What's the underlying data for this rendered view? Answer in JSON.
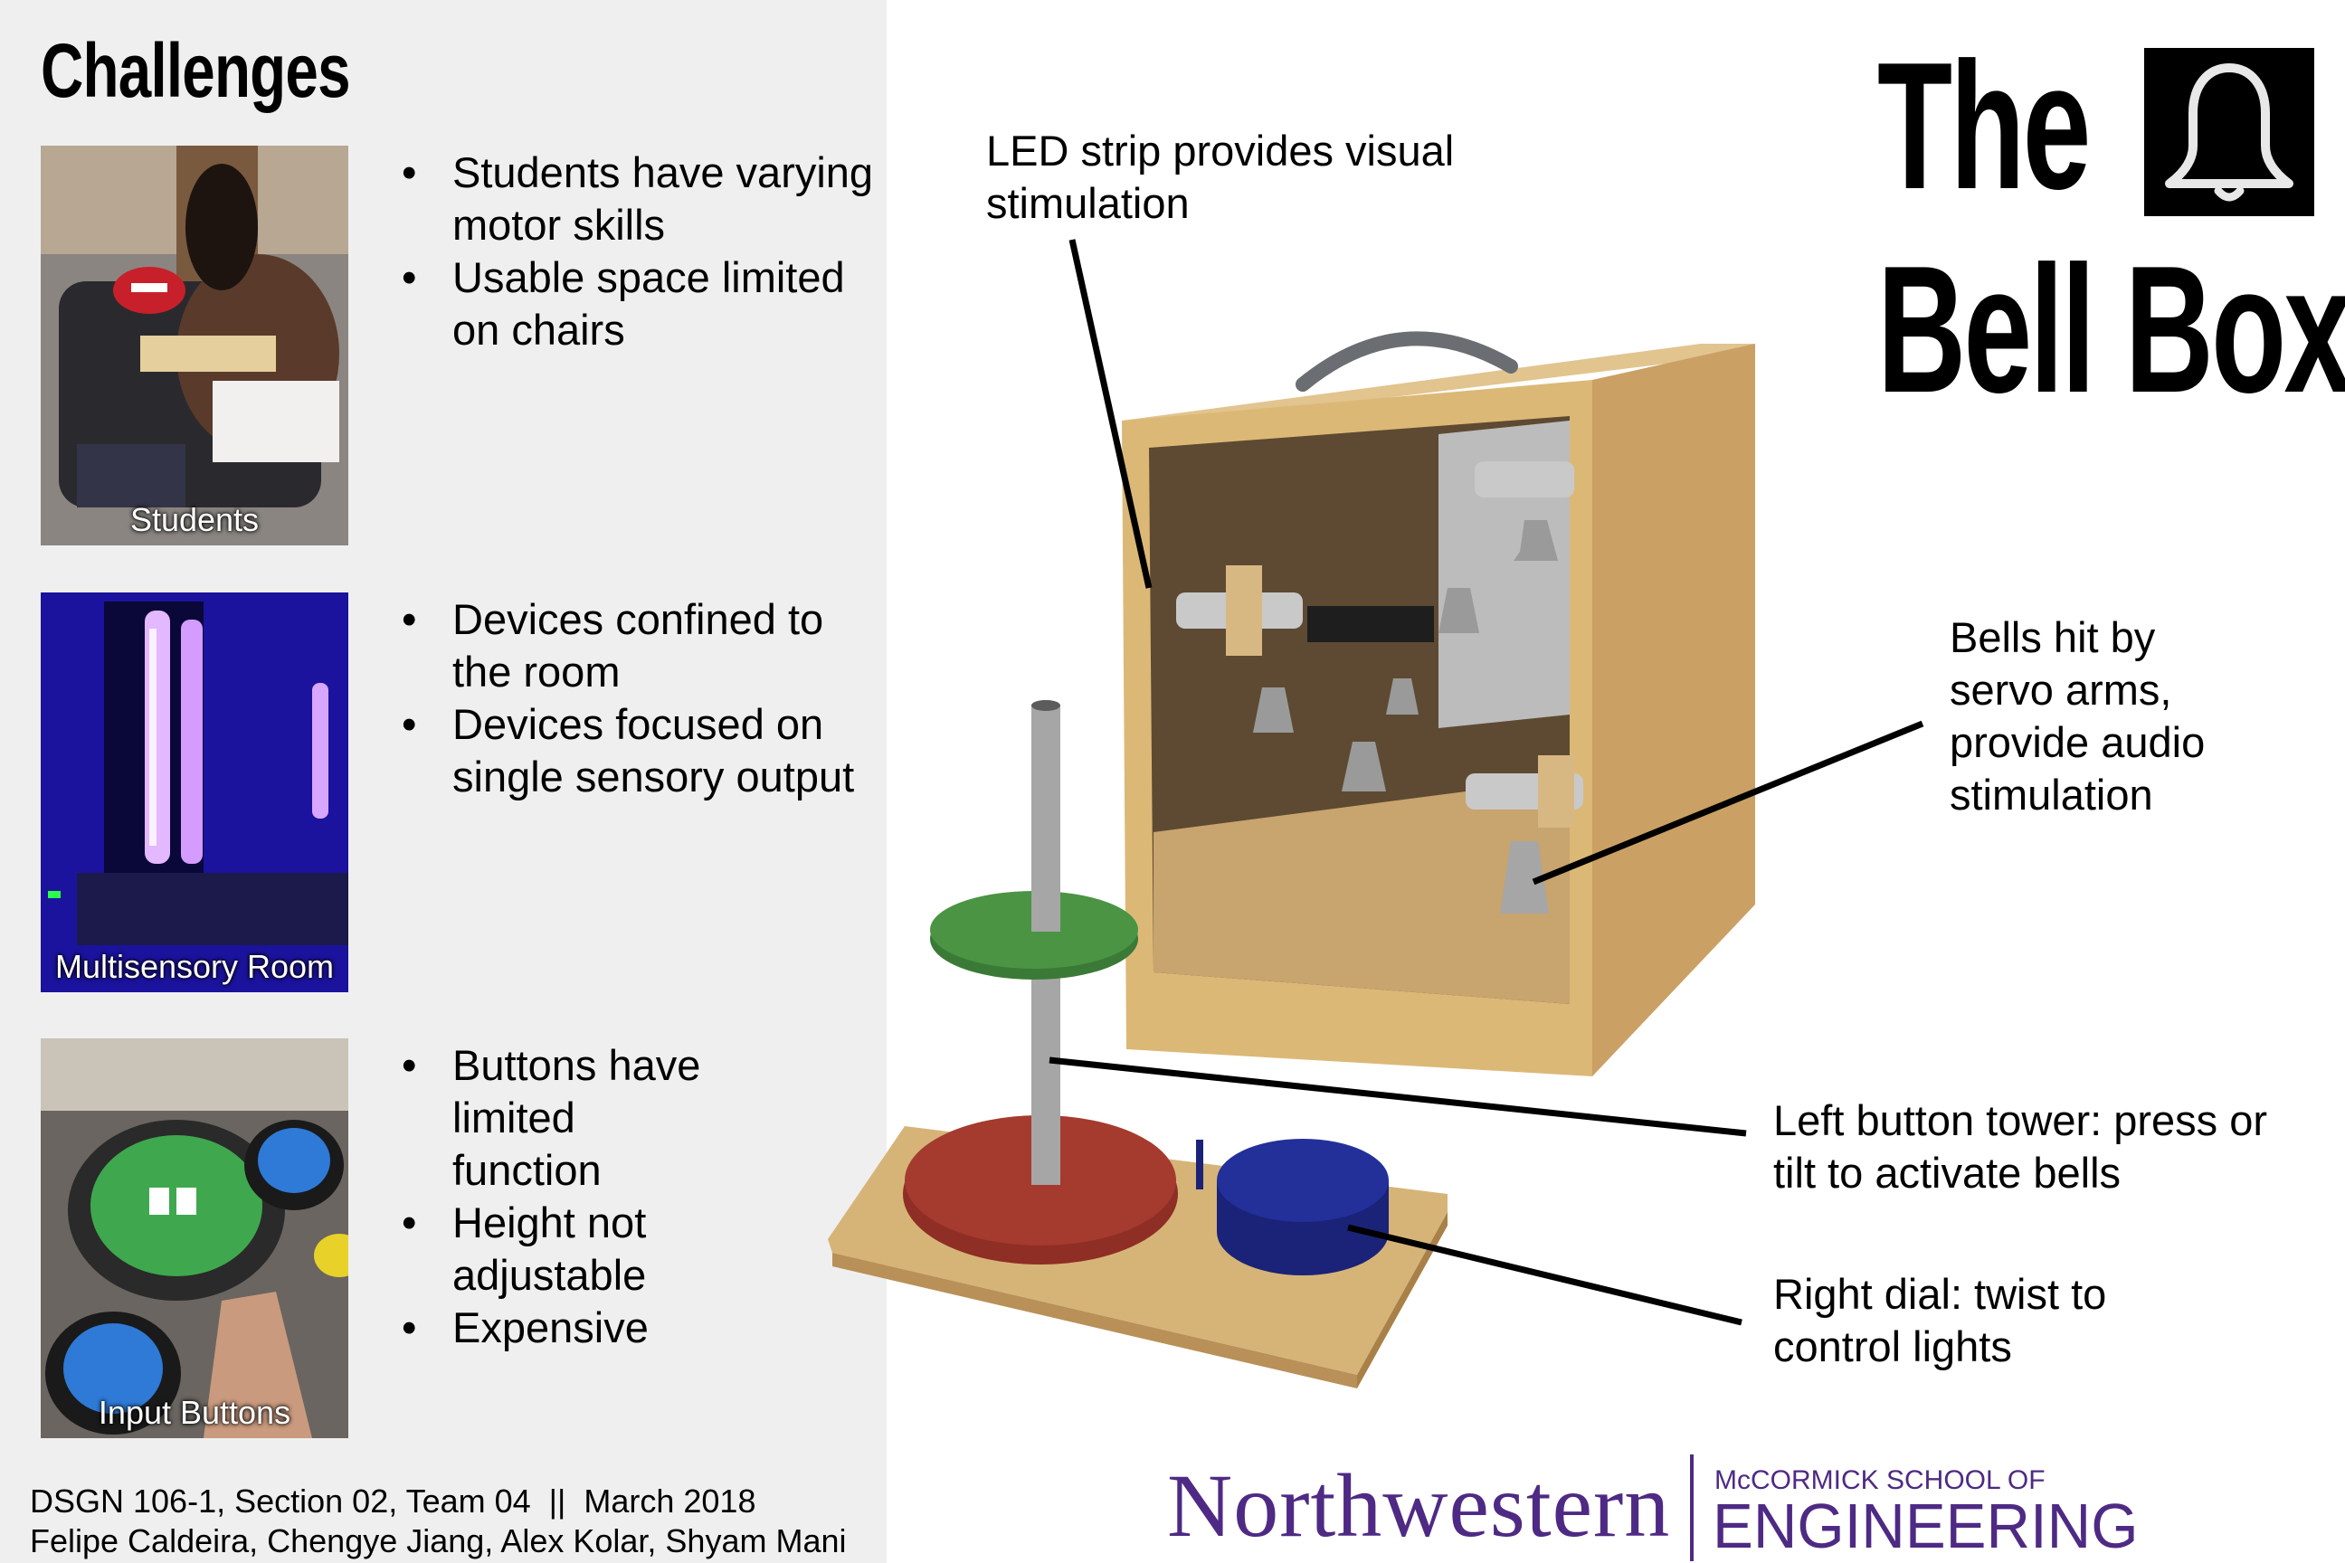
{
  "left": {
    "heading": "Challenges",
    "sections": [
      {
        "photo_caption": "Students",
        "bullets": [
          "Students have varying motor skills",
          "Usable space limited on chairs"
        ]
      },
      {
        "photo_caption": "Multisensory Room",
        "bullets": [
          "Devices confined to the room",
          "Devices focused on single sensory output"
        ]
      },
      {
        "photo_caption": "Input Buttons",
        "bullets": [
          "Buttons have limited function",
          "Height not adjustable",
          "Expensive"
        ]
      }
    ],
    "footer": {
      "course": "DSGN 106-1, Section 02, Team 04  ||  March 2018",
      "team": "Felipe Caldeira, Chengye Jiang, Alex Kolar, Shyam Mani"
    }
  },
  "title": {
    "line1": "The",
    "line2": "Bell Box",
    "icon": "bell-icon"
  },
  "callouts": {
    "led": "LED strip provides visual stimulation",
    "bells": "Bells hit by servo arms, provide audio stimulation",
    "tower": "Left button tower: press or tilt to activate bells",
    "dial": "Right dial: twist to control lights"
  },
  "logo": {
    "wordmark": "Northwestern",
    "school_line": "McCORMICK SCHOOL OF",
    "engineering": "ENGINEERING",
    "color": "#4e2a84"
  },
  "colors": {
    "panel": "#efefef",
    "wood": "#d9b77c",
    "green_disc": "#4a9444",
    "red_disc": "#a53a2e",
    "blue_dial": "#23309a"
  }
}
